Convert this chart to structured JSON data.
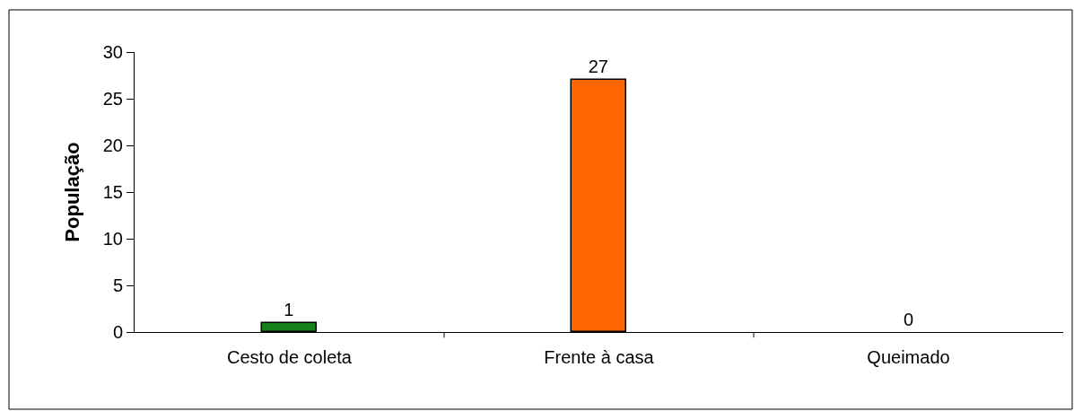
{
  "chart_data": {
    "type": "bar",
    "ylabel": "População",
    "categories": [
      "Cesto de coleta",
      "Frente à casa",
      "Queimado"
    ],
    "values": [
      1,
      27,
      0
    ],
    "colors": [
      "#188018",
      "#ff6600",
      "#7f7f7f"
    ],
    "ylim": [
      0,
      30
    ],
    "yticks": [
      0,
      5,
      10,
      15,
      20,
      25,
      30
    ],
    "data_labels": true
  }
}
